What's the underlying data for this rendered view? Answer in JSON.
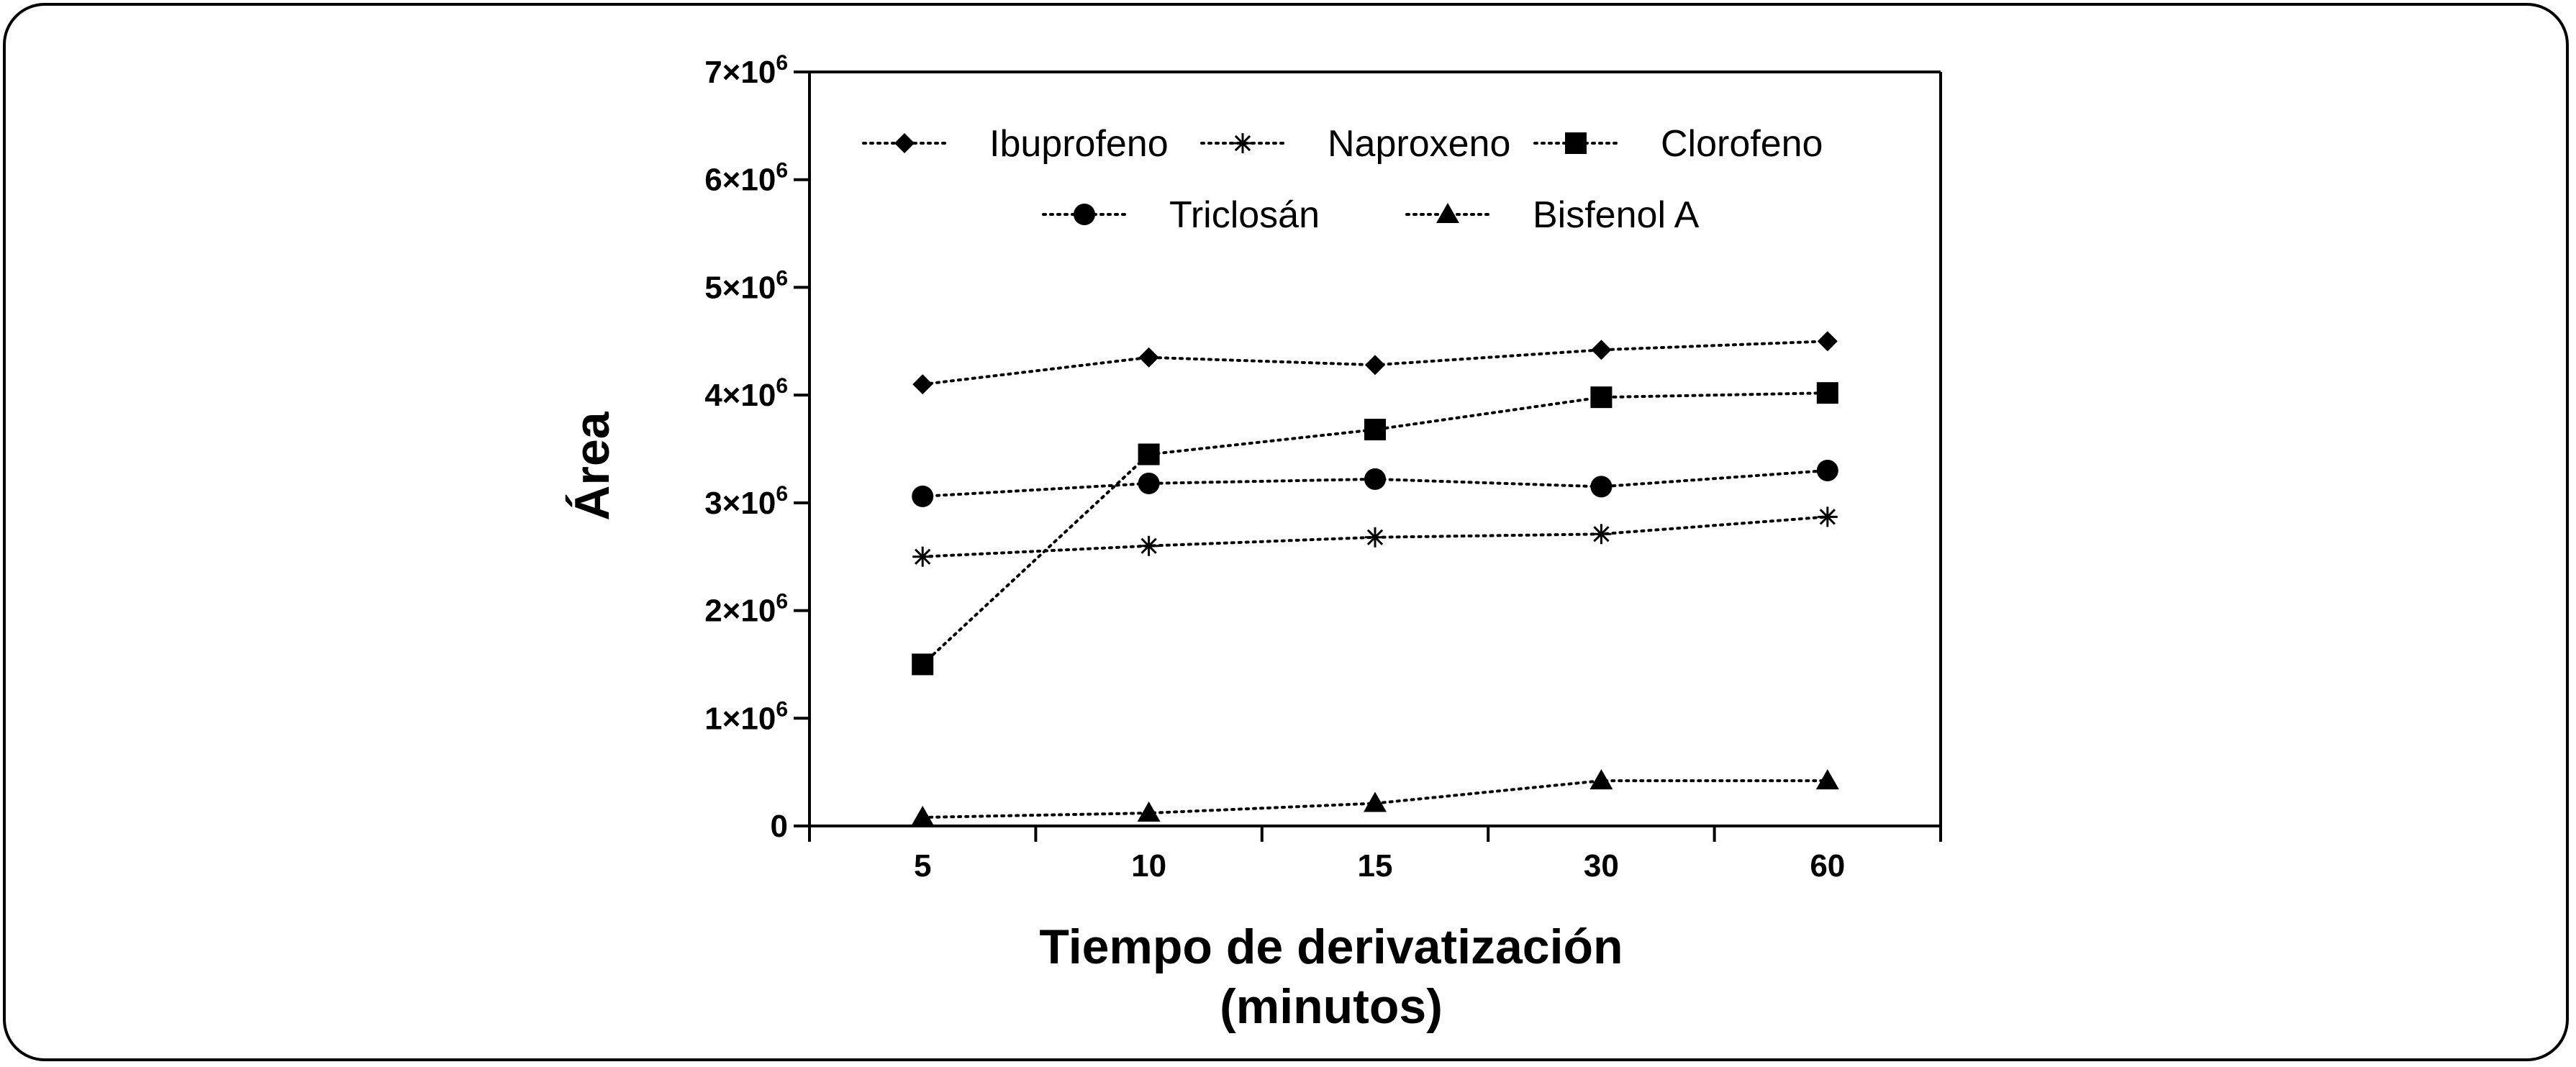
{
  "chart_data": {
    "type": "line",
    "categories": [
      "5",
      "10",
      "15",
      "30",
      "60"
    ],
    "xlabel_lines": [
      "Tiempo de derivatización",
      "(minutos)"
    ],
    "ylabel": "Área",
    "ylim": [
      0,
      7000000
    ],
    "yticks": [
      {
        "value": 0,
        "base": "0",
        "exp": ""
      },
      {
        "value": 1000000,
        "base": "1×10",
        "exp": "6"
      },
      {
        "value": 2000000,
        "base": "2×10",
        "exp": "6"
      },
      {
        "value": 3000000,
        "base": "3×10",
        "exp": "6"
      },
      {
        "value": 4000000,
        "base": "4×10",
        "exp": "6"
      },
      {
        "value": 5000000,
        "base": "5×10",
        "exp": "6"
      },
      {
        "value": 6000000,
        "base": "6×10",
        "exp": "6"
      },
      {
        "value": 7000000,
        "base": "7×10",
        "exp": "6"
      }
    ],
    "grid": false,
    "legend_position": "top",
    "series": [
      {
        "name": "Ibuprofeno",
        "marker": "diamond",
        "values": [
          4100000,
          4350000,
          4280000,
          4420000,
          4500000
        ]
      },
      {
        "name": "Naproxeno",
        "marker": "star",
        "values": [
          2500000,
          2600000,
          2680000,
          2710000,
          2870000
        ]
      },
      {
        "name": "Clorofeno",
        "marker": "square",
        "values": [
          1500000,
          3450000,
          3680000,
          3980000,
          4020000
        ]
      },
      {
        "name": "Triclosán",
        "marker": "circle",
        "values": [
          3060000,
          3180000,
          3220000,
          3150000,
          3300000
        ]
      },
      {
        "name": "Bisfenol A",
        "marker": "triangle",
        "values": [
          80000,
          120000,
          210000,
          420000,
          420000
        ]
      }
    ]
  }
}
